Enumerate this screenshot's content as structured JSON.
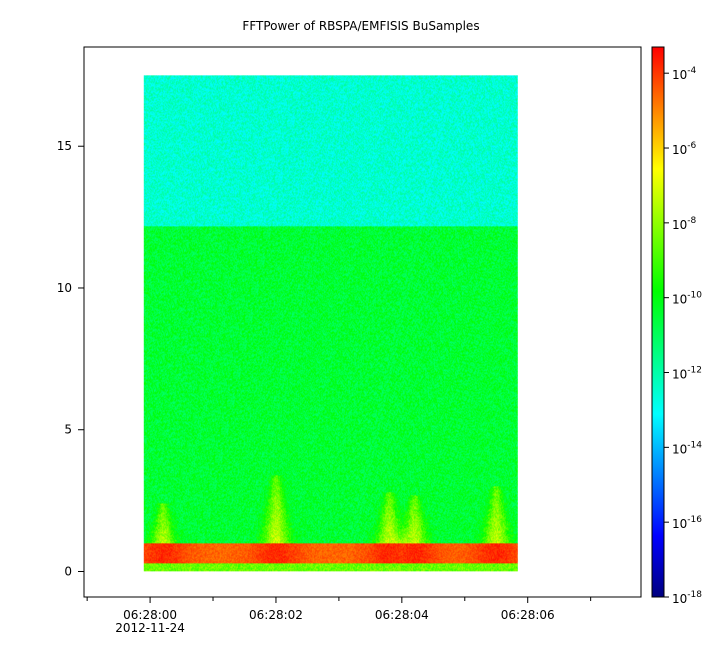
{
  "chart_data": {
    "type": "heatmap",
    "title": "FFTPower of RBSPA/EMFISIS  BuSamples",
    "xlabel": "",
    "ylabel": "",
    "x_ticks": [
      {
        "value": 0,
        "label": "06:28:00",
        "sublabel": "2012-11-24"
      },
      {
        "value": 2,
        "label": "06:28:02",
        "sublabel": ""
      },
      {
        "value": 4,
        "label": "06:28:04",
        "sublabel": ""
      },
      {
        "value": 6,
        "label": "06:28:06",
        "sublabel": ""
      }
    ],
    "x_minor_ticks": [
      -1,
      1,
      3,
      5,
      7
    ],
    "xlim": [
      -1.05,
      7.8
    ],
    "x_data_range": [
      -0.1,
      5.85
    ],
    "y_ticks": [
      0,
      5,
      10,
      15
    ],
    "ylim": [
      -0.9,
      18.5
    ],
    "y_data_range": [
      0,
      17.5
    ],
    "colorbar": {
      "scale": "log",
      "range_exp": [
        -18,
        -3.3
      ],
      "tick_exponents": [
        -18,
        -16,
        -14,
        -12,
        -10,
        -8,
        -6,
        -4
      ],
      "tick_base": "10",
      "colormap": [
        "#00007f",
        "#0000ff",
        "#0080ff",
        "#00ffff",
        "#00ff80",
        "#00ff00",
        "#80ff00",
        "#ffff00",
        "#ff8000",
        "#ff0000"
      ]
    },
    "bands": [
      {
        "y_range": [
          12.2,
          17.5
        ],
        "power_exp": -12.5,
        "description_level": "cyan-green"
      },
      {
        "y_range": [
          1.0,
          12.2
        ],
        "power_exp": -10.5,
        "description_level": "green"
      },
      {
        "y_range": [
          0.3,
          1.0
        ],
        "power_exp": -4.5,
        "description_level": "red-orange"
      }
    ],
    "bursts": [
      {
        "x": 0.2,
        "peak_y": 2.4
      },
      {
        "x": 2.0,
        "peak_y": 3.4
      },
      {
        "x": 3.8,
        "peak_y": 2.8
      },
      {
        "x": 4.2,
        "peak_y": 2.7
      },
      {
        "x": 5.5,
        "peak_y": 3.0
      }
    ]
  }
}
